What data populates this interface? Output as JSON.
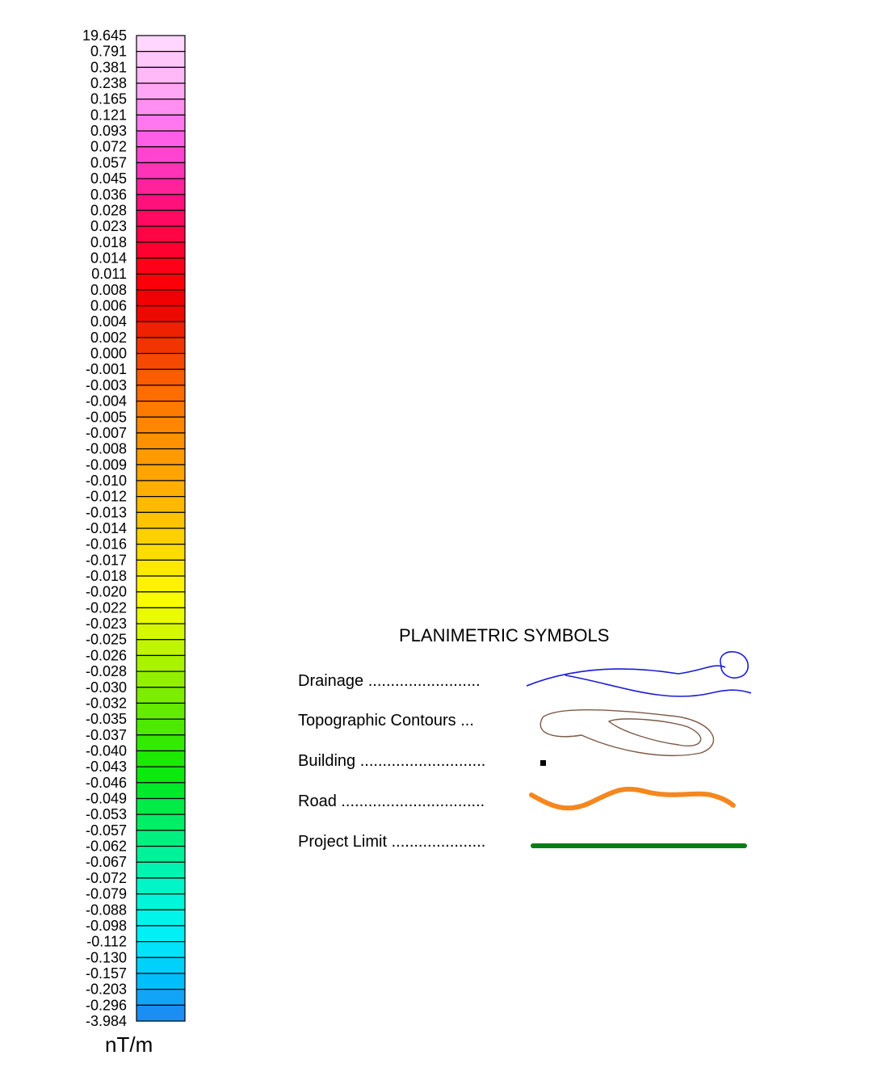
{
  "colorbar": {
    "unit": "nT/m",
    "labels": [
      "19.645",
      "0.791",
      "0.381",
      "0.238",
      "0.165",
      "0.121",
      "0.093",
      "0.072",
      "0.057",
      "0.045",
      "0.036",
      "0.028",
      "0.023",
      "0.018",
      "0.014",
      "0.011",
      "0.008",
      "0.006",
      "0.004",
      "0.002",
      "0.000",
      "-0.001",
      "-0.003",
      "-0.004",
      "-0.005",
      "-0.007",
      "-0.008",
      "-0.009",
      "-0.010",
      "-0.012",
      "-0.013",
      "-0.014",
      "-0.016",
      "-0.017",
      "-0.018",
      "-0.020",
      "-0.022",
      "-0.023",
      "-0.025",
      "-0.026",
      "-0.028",
      "-0.030",
      "-0.032",
      "-0.035",
      "-0.037",
      "-0.040",
      "-0.043",
      "-0.046",
      "-0.049",
      "-0.053",
      "-0.057",
      "-0.062",
      "-0.067",
      "-0.072",
      "-0.079",
      "-0.088",
      "-0.098",
      "-0.112",
      "-0.130",
      "-0.157",
      "-0.203",
      "-0.296",
      "-3.984"
    ],
    "colors": [
      "#ffd6ff",
      "#ffc8fb",
      "#ffb8f8",
      "#ffa6f5",
      "#ff8ff2",
      "#ff78ee",
      "#ff5ee6",
      "#ff44d2",
      "#ff33b8",
      "#ff2299",
      "#ff117c",
      "#ff0a60",
      "#ff0546",
      "#ff0030",
      "#ff0019",
      "#fb0008",
      "#f00000",
      "#ec0a00",
      "#ee2200",
      "#f23500",
      "#f64900",
      "#fa5c00",
      "#fd6d00",
      "#ff7b00",
      "#ff8600",
      "#ff9000",
      "#ff9a00",
      "#ffa400",
      "#ffaf00",
      "#ffb900",
      "#ffc400",
      "#ffd000",
      "#ffdc00",
      "#ffe800",
      "#fff300",
      "#f9fb00",
      "#eafb00",
      "#d5f700",
      "#bff500",
      "#a9f200",
      "#93ef00",
      "#7cec00",
      "#64eb00",
      "#4cea00",
      "#34ea00",
      "#1be900",
      "#0be90f",
      "#00e92a",
      "#00eb48",
      "#00ee66",
      "#00f080",
      "#00f299",
      "#00f4b1",
      "#00f5c7",
      "#00f6da",
      "#00f5ea",
      "#00f0f5",
      "#00e3fb",
      "#00d1fb",
      "#00bdfb",
      "#12a4f5",
      "#1a8ef3"
    ]
  },
  "legend": {
    "title": "PLANIMETRIC SYMBOLS",
    "items": [
      {
        "label": "Drainage .........................",
        "color": "#1a1adc"
      },
      {
        "label": "Topographic Contours ...",
        "color": "#7d5a46"
      },
      {
        "label": "Building ............................",
        "color": "#000000"
      },
      {
        "label": "Road ................................",
        "color": "#f5871e"
      },
      {
        "label": "Project Limit .....................",
        "color": "#0a7d14"
      }
    ]
  }
}
